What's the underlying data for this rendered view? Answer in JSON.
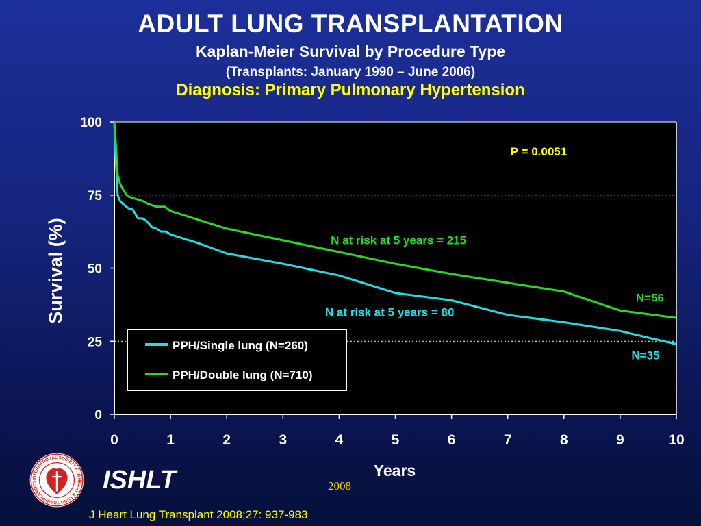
{
  "header": {
    "title": "ADULT LUNG TRANSPLANTATION",
    "subtitle": "Kaplan-Meier Survival by Procedure Type",
    "date_range": "(Transplants: January 1990 – June 2006)",
    "diagnosis": "Diagnosis: Primary Pulmonary Hypertension"
  },
  "footer": {
    "org": "ISHLT",
    "year": "2008",
    "citation": "J Heart Lung Transplant 2008;27: 937-983",
    "logo_text": "INTERNATIONAL SOCIETY FOR HEART & LUNG TRANSPLANTATION"
  },
  "colors": {
    "single_lung": "#1de0e6",
    "double_lung": "#22dd22",
    "title": "#ffffff",
    "highlight": "#ffff00",
    "plot_background": "#000000",
    "logo_red": "#d42020"
  },
  "chart_data": {
    "type": "line",
    "title": "",
    "xlabel": "Years",
    "ylabel": "Survival (%)",
    "xlim": [
      0,
      10
    ],
    "ylim": [
      0,
      100
    ],
    "xticks": [
      "0",
      "1",
      "2",
      "3",
      "4",
      "5",
      "6",
      "7",
      "8",
      "9",
      "10"
    ],
    "yticks": [
      "0",
      "25",
      "50",
      "75",
      "100"
    ],
    "grid": "horizontal dotted",
    "legend_position": "bottom-left",
    "series": [
      {
        "name": "PPH/Single lung (N=260)",
        "color": "#1de0e6",
        "x": [
          0,
          0.02,
          0.06,
          0.1,
          0.15,
          0.25,
          0.33,
          0.42,
          0.5,
          0.58,
          0.67,
          0.75,
          0.83,
          0.92,
          1.0,
          1.5,
          2.0,
          3.0,
          4.0,
          5.0,
          6.0,
          7.0,
          8.0,
          9.0,
          10.0
        ],
        "y": [
          100,
          90,
          75,
          73,
          72,
          70.5,
          70,
          67,
          67,
          66,
          64,
          63.5,
          62.5,
          62.5,
          61.5,
          58.5,
          55,
          51.5,
          47.5,
          41.5,
          39,
          34,
          31.5,
          28.5,
          24
        ]
      },
      {
        "name": "PPH/Double lung (N=710)",
        "color": "#22dd22",
        "x": [
          0,
          0.02,
          0.06,
          0.1,
          0.15,
          0.2,
          0.25,
          0.33,
          0.5,
          0.6,
          0.75,
          0.9,
          1.0,
          1.5,
          2.0,
          3.0,
          4.0,
          5.0,
          6.0,
          7.0,
          8.0,
          9.0,
          10.0
        ],
        "y": [
          100,
          95,
          82,
          79,
          77,
          75.5,
          74.5,
          74,
          73,
          72,
          71,
          71,
          69.5,
          66.5,
          63.5,
          59.5,
          55.5,
          51.5,
          48,
          45,
          42,
          35.5,
          33
        ]
      }
    ],
    "annotations": [
      {
        "text": "P = 0.0051",
        "color": "#ffff00",
        "x": 7.05,
        "y": 88.5
      },
      {
        "text": "N at risk at 5 years = 215",
        "color": "#22dd22",
        "x": 3.85,
        "y": 58.2
      },
      {
        "text": "N=56",
        "color": "#22dd22",
        "x": 9.28,
        "y": 38.5
      },
      {
        "text": "N at risk at 5 years = 80",
        "color": "#1de0e6",
        "x": 3.75,
        "y": 33.6
      },
      {
        "text": "N=35",
        "color": "#1de0e6",
        "x": 9.2,
        "y": 18.9
      }
    ]
  }
}
